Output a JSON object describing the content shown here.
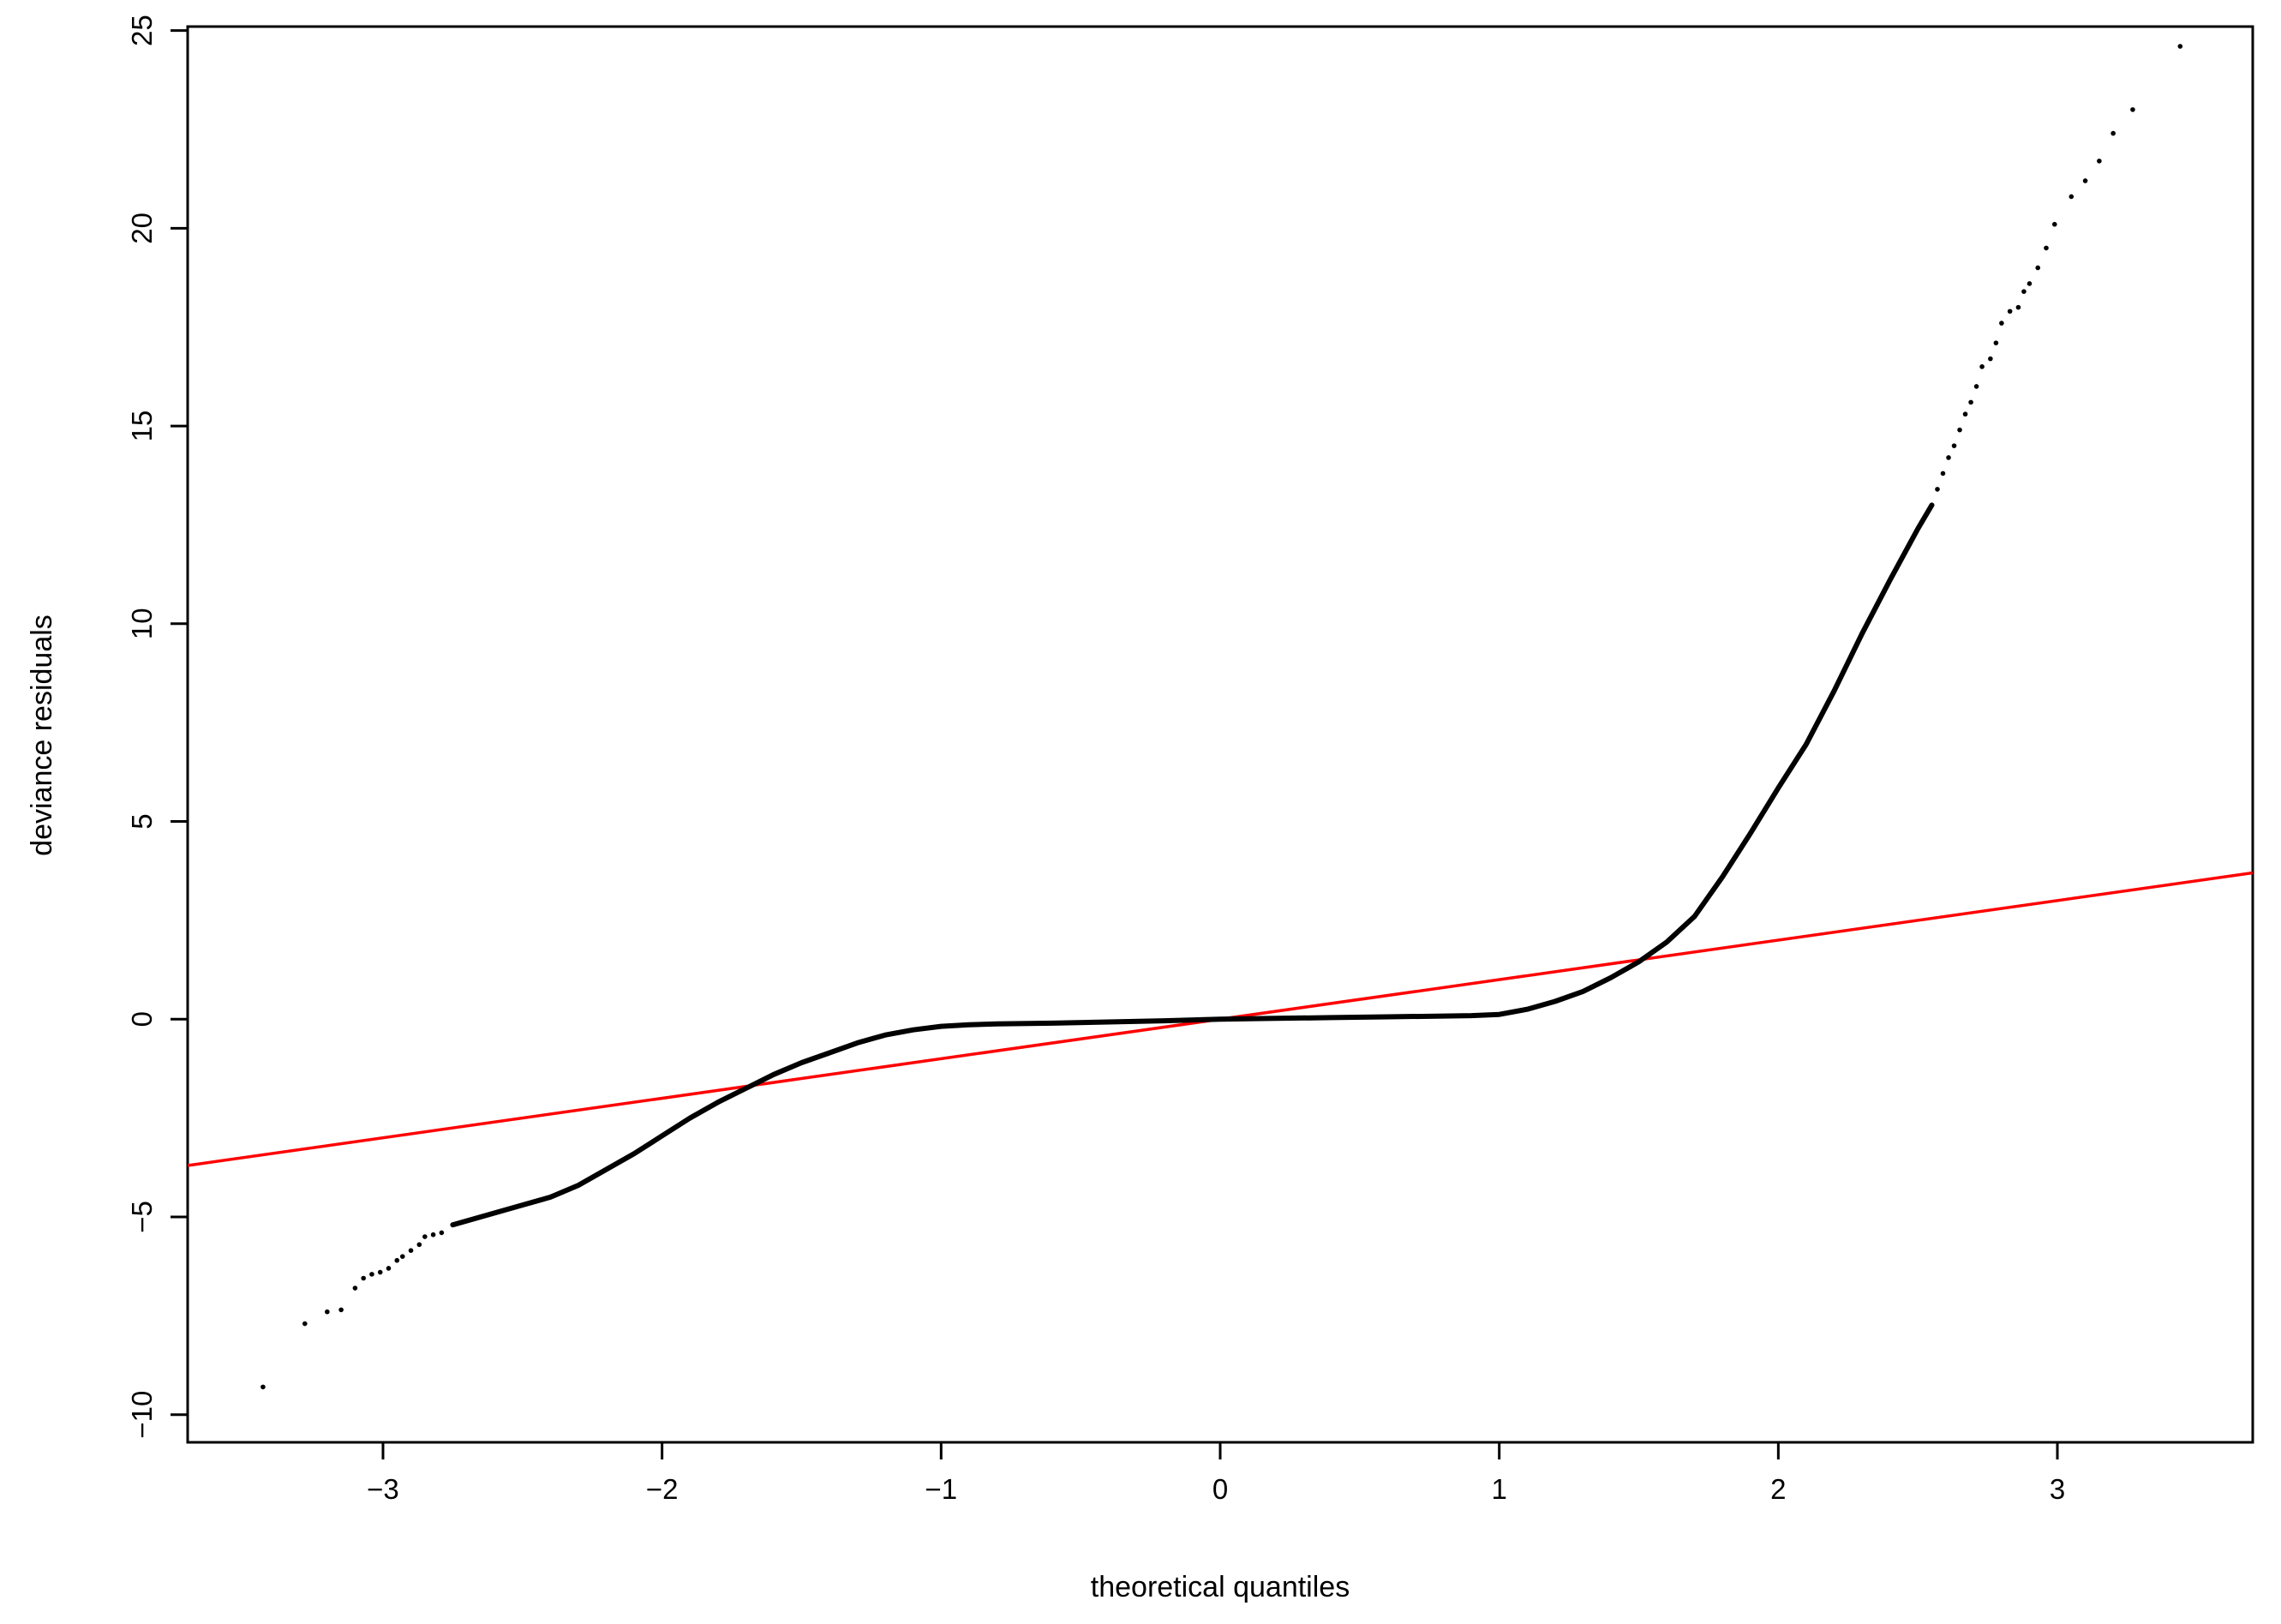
{
  "chart_data": {
    "type": "scatter",
    "title": "",
    "xlabel": "theoretical quantiles",
    "ylabel": "deviance residuals",
    "xlim": [
      -3.7,
      3.7
    ],
    "ylim": [
      -10.7,
      25.1
    ],
    "xticks": [
      -3,
      -2,
      -1,
      0,
      1,
      2,
      3
    ],
    "xtick_labels": [
      "−3",
      "−2",
      "−1",
      "0",
      "1",
      "2",
      "3"
    ],
    "yticks": [
      -10,
      -5,
      0,
      5,
      10,
      15,
      20,
      25
    ],
    "ytick_labels": [
      "−10",
      "−5",
      "0",
      "5",
      "10",
      "15",
      "20",
      "25"
    ],
    "grid": false,
    "legend": "none",
    "point_color": "#000000",
    "reference_line": {
      "intercept": 0,
      "slope": 1,
      "color": "#ff0000"
    },
    "curve": {
      "x": [
        -2.75,
        -2.6,
        -2.5,
        -2.4,
        -2.3,
        -2.2,
        -2.1,
        -2.0,
        -1.9,
        -1.8,
        -1.7,
        -1.6,
        -1.5,
        -1.4,
        -1.3,
        -1.2,
        -1.1,
        -1.0,
        -0.9,
        -0.8,
        -0.6,
        -0.4,
        -0.2,
        0.0,
        0.2,
        0.4,
        0.6,
        0.8,
        0.9,
        1.0,
        1.1,
        1.2,
        1.3,
        1.4,
        1.5,
        1.6,
        1.7,
        1.8,
        1.9,
        2.0,
        2.1,
        2.2,
        2.3,
        2.4,
        2.5,
        2.55
      ],
      "y": [
        -5.2,
        -4.9,
        -4.7,
        -4.5,
        -4.2,
        -3.8,
        -3.4,
        -2.95,
        -2.5,
        -2.1,
        -1.75,
        -1.4,
        -1.1,
        -0.85,
        -0.6,
        -0.4,
        -0.27,
        -0.18,
        -0.14,
        -0.12,
        -0.1,
        -0.07,
        -0.04,
        0.0,
        0.02,
        0.04,
        0.06,
        0.08,
        0.09,
        0.12,
        0.25,
        0.45,
        0.7,
        1.05,
        1.45,
        1.95,
        2.6,
        3.6,
        4.7,
        5.85,
        6.95,
        8.3,
        9.75,
        11.1,
        12.4,
        13.0
      ]
    },
    "tail_points": {
      "x": [
        -3.43,
        -3.28,
        -3.2,
        -3.15,
        -3.1,
        -3.07,
        -3.04,
        -3.01,
        -2.98,
        -2.95,
        -2.93,
        -2.9,
        -2.87,
        -2.85,
        -2.82,
        -2.79,
        2.57,
        2.59,
        2.61,
        2.63,
        2.65,
        2.67,
        2.69,
        2.71,
        2.73,
        2.76,
        2.78,
        2.8,
        2.83,
        2.86,
        2.88,
        2.9,
        2.93,
        2.96,
        2.99,
        3.05,
        3.1,
        3.15,
        3.2,
        3.27,
        3.44
      ],
      "y": [
        -9.3,
        -7.7,
        -7.4,
        -7.35,
        -6.8,
        -6.55,
        -6.45,
        -6.4,
        -6.3,
        -6.1,
        -6.0,
        -5.85,
        -5.7,
        -5.5,
        -5.45,
        -5.4,
        13.4,
        13.8,
        14.2,
        14.5,
        14.9,
        15.3,
        15.6,
        16.0,
        16.5,
        16.7,
        17.1,
        17.6,
        17.9,
        18.0,
        18.4,
        18.6,
        19.0,
        19.5,
        20.1,
        20.8,
        21.2,
        21.7,
        22.4,
        23.0,
        24.6
      ]
    }
  }
}
